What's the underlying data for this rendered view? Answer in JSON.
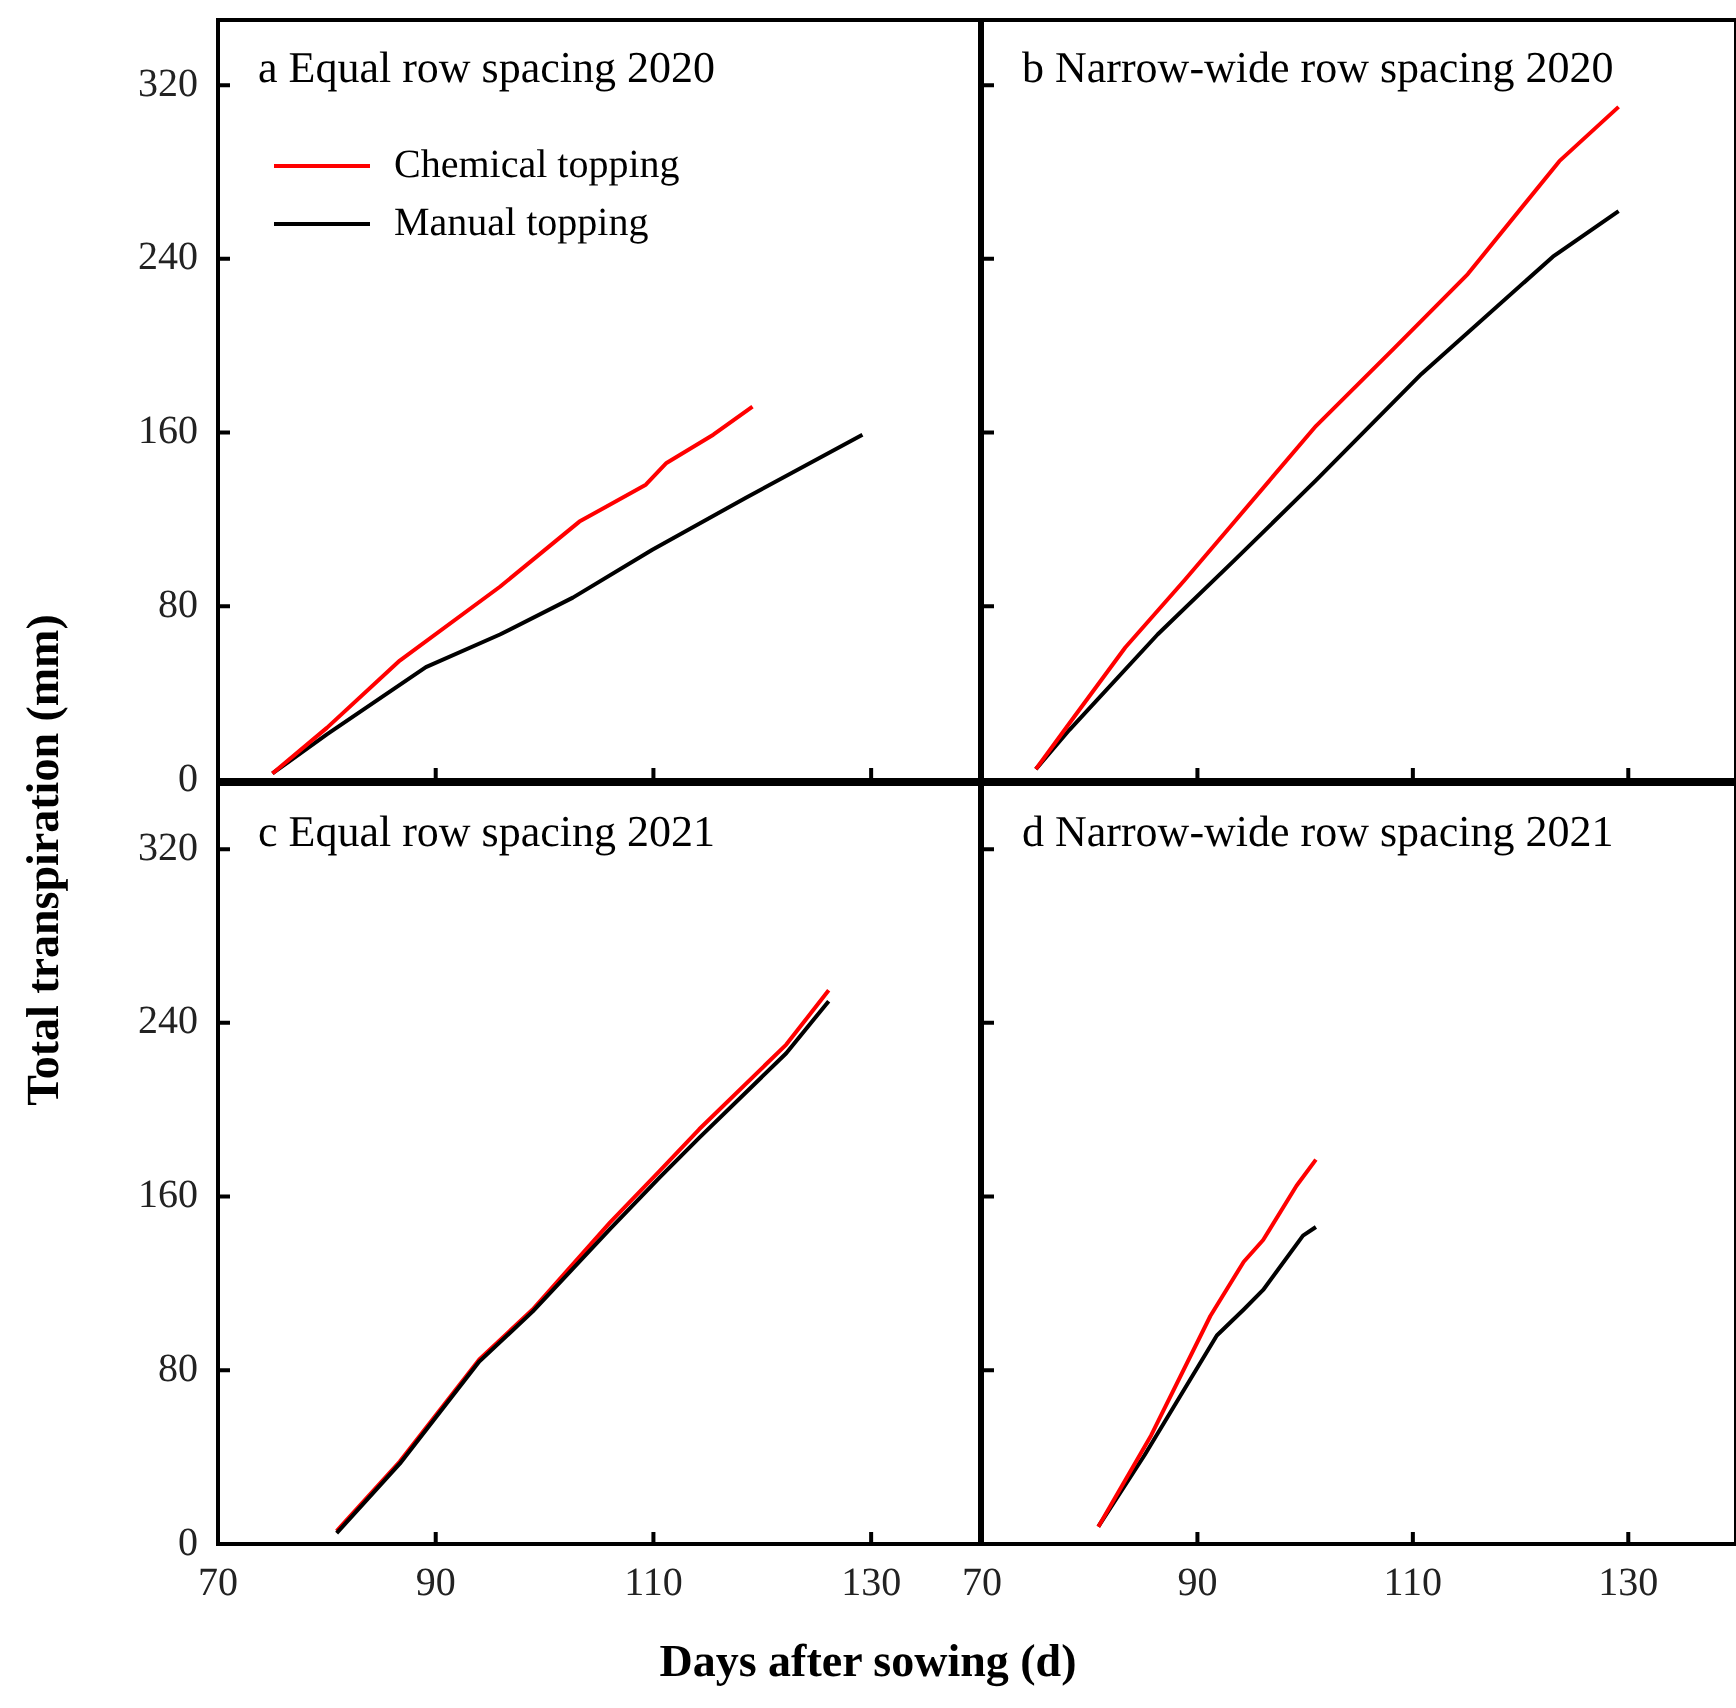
{
  "chart_data": [
    {
      "type": "line",
      "title": "a Equal row spacing 2020",
      "ylabel": "Total transpiration (mm)",
      "xlim": [
        70,
        140
      ],
      "xticks": [
        70,
        90,
        110,
        130
      ],
      "ylim": [
        0,
        350
      ],
      "yticks": [
        0,
        80,
        160,
        240,
        320
      ],
      "tick_labels": "y",
      "legend": "top left",
      "marker": "none",
      "line_style": "solid",
      "grid": false,
      "series": [
        {
          "name": "Chemical topping",
          "color": "#ff0000",
          "x": [
            75,
            80,
            86.7,
            95.9,
            103.2,
            109.3,
            111.2,
            115.5,
            119.1
          ],
          "values": [
            3,
            24,
            55,
            89,
            119,
            136,
            146,
            159,
            172
          ]
        },
        {
          "name": "Manual topping",
          "color": "#000000",
          "x": [
            75,
            80,
            89.1,
            95.9,
            102.6,
            109.9,
            118.5,
            129.2
          ],
          "values": [
            3,
            21,
            52,
            67,
            84,
            106,
            130,
            159
          ]
        }
      ]
    },
    {
      "type": "line",
      "title": "b Narrow-wide row spacing 2020",
      "xlim": [
        70,
        140
      ],
      "xticks": [
        70,
        90,
        110,
        130
      ],
      "ylim": [
        0,
        350
      ],
      "yticks": [
        0,
        80,
        160,
        240,
        320
      ],
      "tick_labels": false,
      "marker": "none",
      "line_style": "solid",
      "grid": false,
      "series": [
        {
          "color": "#ff0000",
          "x": [
            75,
            78.1,
            83.3,
            88.8,
            93.1,
            101,
            108.3,
            115.1,
            123.6,
            129.1
          ],
          "values": [
            5,
            26,
            61,
            92,
            117,
            163,
            199,
            233,
            285,
            310
          ]
        },
        {
          "color": "#000000",
          "x": [
            75,
            78.1,
            86.3,
            93.4,
            101,
            110.8,
            123,
            129.1
          ],
          "values": [
            5,
            23,
            67,
            101,
            138,
            187,
            241,
            262
          ]
        }
      ]
    },
    {
      "type": "line",
      "title": "c Equal row spacing 2021",
      "xlabel": "Days after sowing (d)",
      "xlim": [
        70,
        140
      ],
      "xticks": [
        70,
        90,
        110,
        130
      ],
      "ylim": [
        0,
        350
      ],
      "yticks": [
        0,
        80,
        160,
        240,
        320
      ],
      "marker": "none",
      "line_style": "solid",
      "grid": false,
      "series": [
        {
          "color": "#000000",
          "x": [
            80.9,
            86.7,
            94,
            98.9,
            106,
            110.6,
            114.2,
            122.2,
            126.1
          ],
          "values": [
            5,
            37,
            84,
            107,
            145,
            169,
            187,
            226,
            250
          ]
        },
        {
          "color": "#ff0000",
          "x": [
            80.9,
            86.7,
            94,
            98.9,
            106,
            110.6,
            114.2,
            122.2,
            126.1
          ],
          "values": [
            6,
            38,
            85,
            108,
            148,
            172,
            191,
            230,
            255
          ]
        }
      ]
    },
    {
      "type": "line",
      "title": "d Narrow-wide row spacing 2021",
      "xlim": [
        70,
        140
      ],
      "xticks": [
        70,
        90,
        110,
        130
      ],
      "ylim": [
        0,
        350
      ],
      "yticks": [
        0,
        80,
        160,
        240,
        320
      ],
      "tick_labels": "x",
      "marker": "none",
      "line_style": "solid",
      "grid": false,
      "series": [
        {
          "color": "#ff0000",
          "x": [
            80.8,
            85.7,
            91.2,
            94.3,
            96.1,
            99.2,
            101
          ],
          "values": [
            8,
            50,
            105,
            130,
            140,
            165,
            177
          ]
        },
        {
          "color": "#000000",
          "x": [
            80.8,
            85.1,
            91.8,
            94.3,
            96.1,
            99.8,
            101
          ],
          "values": [
            8,
            41,
            96,
            108,
            117,
            142,
            146
          ]
        }
      ]
    }
  ]
}
